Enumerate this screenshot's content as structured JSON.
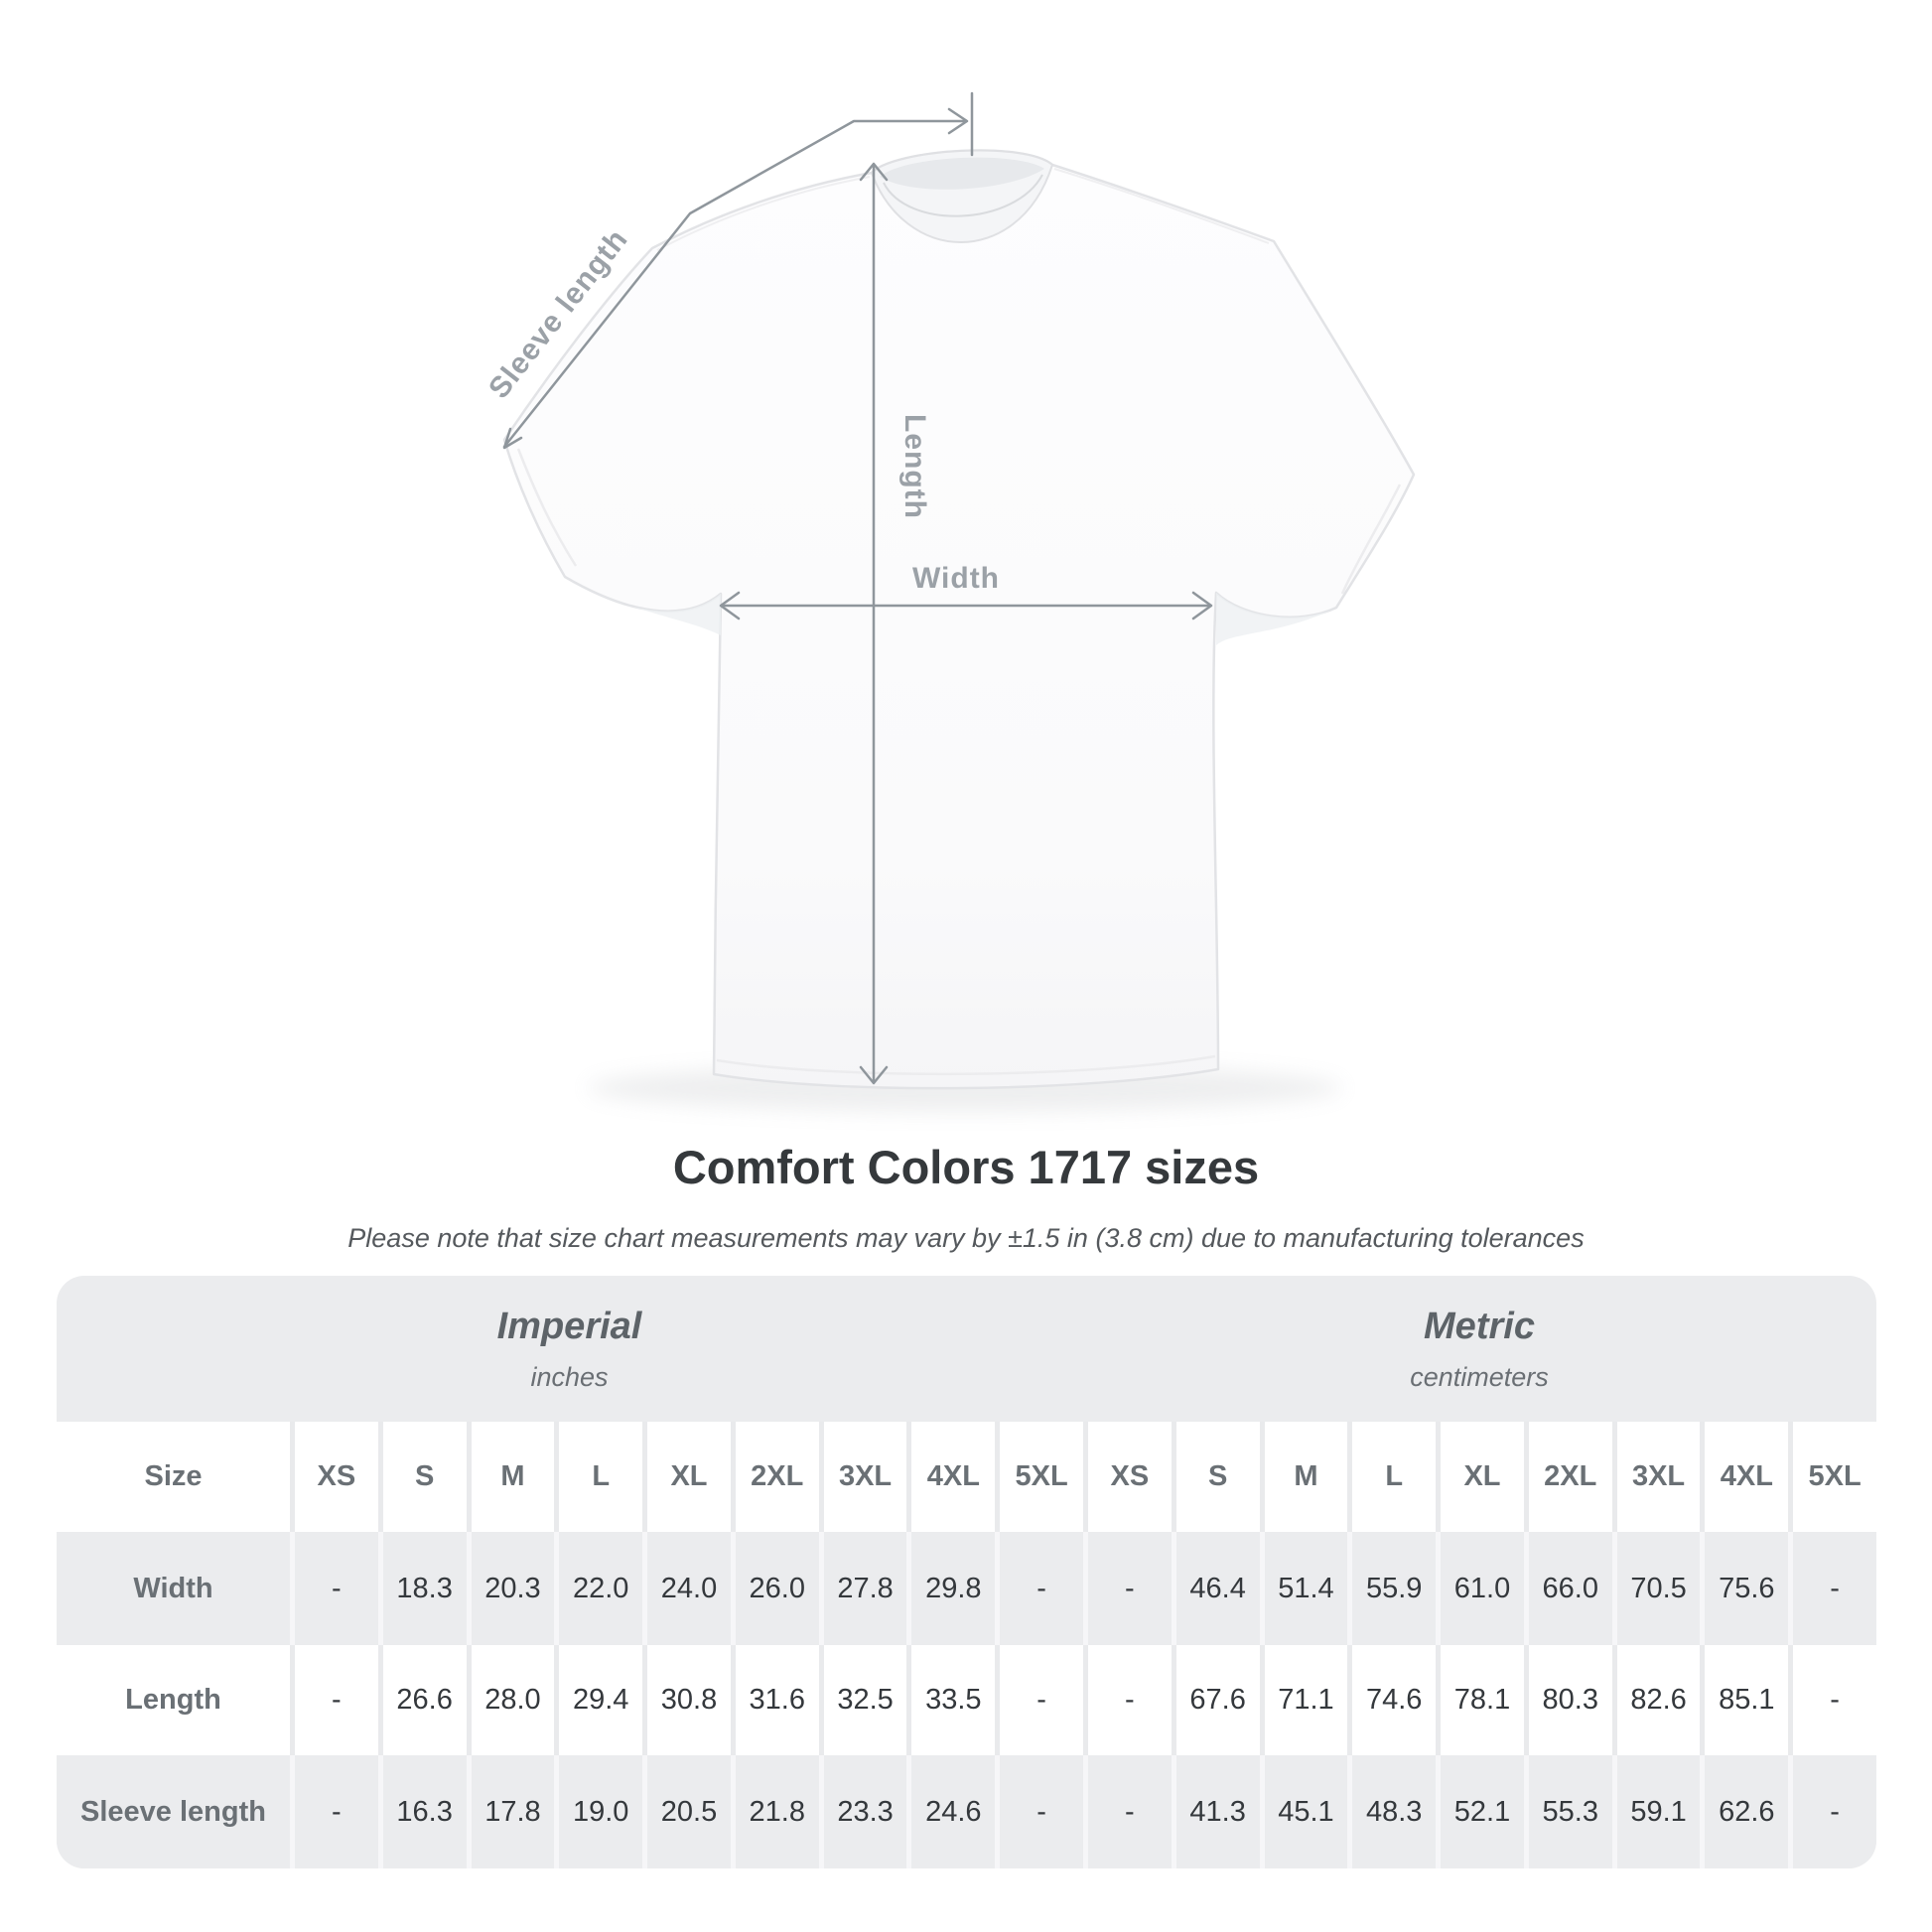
{
  "figure": {
    "sleeve_label": "Sleeve length",
    "length_label": "Length",
    "width_label": "Width"
  },
  "title": "Comfort Colors 1717 sizes",
  "subtitle": "Please note that size chart measurements may vary by ±1.5 in (3.8 cm) due to manufacturing tolerances",
  "chart_data": {
    "type": "table",
    "title": "Comfort Colors 1717 sizes",
    "size_header": "Size",
    "column_groups": [
      {
        "label": "Imperial",
        "unit": "inches"
      },
      {
        "label": "Metric",
        "unit": "centimeters"
      }
    ],
    "sizes": [
      "XS",
      "S",
      "M",
      "L",
      "XL",
      "2XL",
      "3XL",
      "4XL",
      "5XL"
    ],
    "rows": [
      {
        "label": "Width",
        "imperial": [
          null,
          18.3,
          20.3,
          22.0,
          24.0,
          26.0,
          27.8,
          29.8,
          null
        ],
        "metric": [
          null,
          46.4,
          51.4,
          55.9,
          61.0,
          66.0,
          70.5,
          75.6,
          null
        ]
      },
      {
        "label": "Length",
        "imperial": [
          null,
          26.6,
          28.0,
          29.4,
          30.8,
          31.6,
          32.5,
          33.5,
          null
        ],
        "metric": [
          null,
          67.6,
          71.1,
          74.6,
          78.1,
          80.3,
          82.6,
          85.1,
          null
        ]
      },
      {
        "label": "Sleeve length",
        "imperial": [
          null,
          16.3,
          17.8,
          19.0,
          20.5,
          21.8,
          23.3,
          24.6,
          null
        ],
        "metric": [
          null,
          41.3,
          45.1,
          48.3,
          52.1,
          55.3,
          59.1,
          62.6,
          null
        ]
      }
    ],
    "missing_value_display": "-"
  },
  "colors": {
    "table_bg": "#ebecee",
    "header_text": "#6a7075",
    "value_text": "#34383c",
    "annotation_line": "#8f969c",
    "annotation_text": "#9ba1a7",
    "title_text": "#35393c"
  }
}
